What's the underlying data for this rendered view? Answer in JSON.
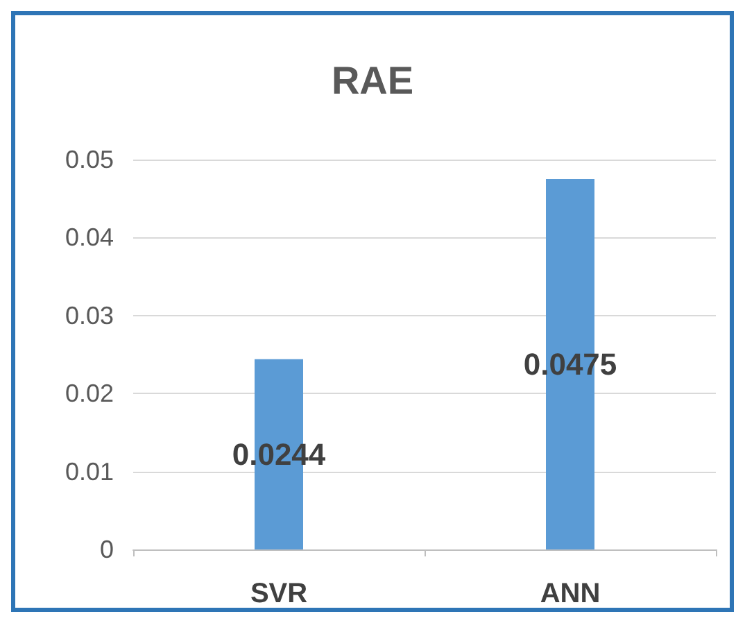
{
  "chart_data": {
    "type": "bar",
    "title": "RAE",
    "categories": [
      "SVR",
      "ANN"
    ],
    "values": [
      0.0244,
      0.0475
    ],
    "color": "#5b9bd5",
    "ylim": [
      0,
      0.05
    ],
    "yticks": [
      0,
      0.01,
      0.02,
      0.03,
      0.04,
      0.05
    ],
    "grid": "y",
    "data_labels": true
  }
}
